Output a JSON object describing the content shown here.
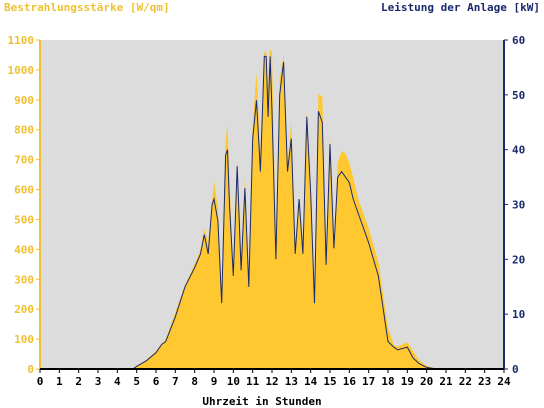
{
  "chart_data": {
    "type": "area",
    "title_left": "Bestrahlungsstärke [W/qm]",
    "title_right": "Leistung der Anlage [kW]",
    "xlabel": "Uhrzeit in Stunden",
    "xlim": [
      0,
      24
    ],
    "x_ticks": [
      "0",
      "1",
      "2",
      "3",
      "4",
      "5",
      "6",
      "7",
      "8",
      "9",
      "10",
      "11",
      "12",
      "13",
      "14",
      "15",
      "16",
      "17",
      "18",
      "19",
      "20",
      "21",
      "22",
      "23",
      "24"
    ],
    "ylim_left": [
      0,
      1100
    ],
    "y_ticks_left": [
      "0",
      "100",
      "200",
      "300",
      "400",
      "500",
      "600",
      "700",
      "800",
      "900",
      "1000",
      "1100"
    ],
    "ylim_right": [
      0,
      60
    ],
    "y_ticks_right": [
      "0",
      "10",
      "20",
      "30",
      "40",
      "50",
      "60"
    ],
    "grid": false,
    "colors": {
      "plot_bg": "#dcdcdc",
      "irradiance_fill": "#ffc830",
      "power_line": "#1a2a6c",
      "left_axis": "#f0c030",
      "right_axis": "#1a2a6c"
    },
    "series": [
      {
        "axis": "left",
        "kind": "area",
        "x": [
          0,
          4.8,
          5.0,
          5.5,
          6.0,
          6.3,
          6.5,
          7.0,
          7.5,
          8.0,
          8.3,
          8.5,
          8.7,
          8.9,
          9.0,
          9.2,
          9.4,
          9.6,
          9.7,
          9.8,
          10.0,
          10.2,
          10.4,
          10.6,
          10.8,
          11.0,
          11.2,
          11.4,
          11.6,
          11.7,
          11.8,
          11.9,
          12.0,
          12.2,
          12.4,
          12.6,
          12.8,
          13.0,
          13.2,
          13.4,
          13.6,
          13.8,
          14.0,
          14.2,
          14.4,
          14.6,
          14.8,
          15.0,
          15.2,
          15.4,
          15.6,
          15.8,
          16.0,
          16.2,
          16.5,
          17.0,
          17.5,
          18.0,
          18.3,
          18.5,
          19.0,
          19.3,
          19.6,
          20.0,
          20.5,
          21.0,
          24.0
        ],
        "y": [
          0,
          0,
          10,
          30,
          60,
          85,
          100,
          190,
          280,
          350,
          400,
          470,
          420,
          560,
          630,
          540,
          250,
          760,
          820,
          620,
          330,
          690,
          370,
          640,
          300,
          820,
          990,
          720,
          1060,
          1060,
          940,
          1070,
          1060,
          400,
          970,
          1050,
          680,
          830,
          420,
          570,
          420,
          860,
          610,
          230,
          920,
          910,
          350,
          780,
          410,
          690,
          730,
          720,
          690,
          640,
          560,
          470,
          360,
          140,
          80,
          75,
          90,
          60,
          30,
          10,
          2,
          0,
          0
        ]
      },
      {
        "axis": "right",
        "kind": "line",
        "x": [
          0,
          4.8,
          5.0,
          5.5,
          6.0,
          6.3,
          6.5,
          7.0,
          7.5,
          8.0,
          8.3,
          8.5,
          8.7,
          8.9,
          9.0,
          9.2,
          9.4,
          9.6,
          9.7,
          9.8,
          10.0,
          10.2,
          10.4,
          10.6,
          10.8,
          11.0,
          11.2,
          11.4,
          11.6,
          11.7,
          11.8,
          11.9,
          12.0,
          12.2,
          12.4,
          12.6,
          12.8,
          13.0,
          13.2,
          13.4,
          13.6,
          13.8,
          14.0,
          14.2,
          14.4,
          14.6,
          14.8,
          15.0,
          15.2,
          15.4,
          15.6,
          15.8,
          16.0,
          16.2,
          16.5,
          17.0,
          17.5,
          18.0,
          18.3,
          18.5,
          19.0,
          19.3,
          19.6,
          20.0,
          20.5,
          21.0,
          24.0
        ],
        "y": [
          0,
          0,
          0.5,
          1.5,
          3,
          4.5,
          5,
          9.5,
          15,
          18.5,
          21,
          24.5,
          21,
          30,
          31,
          27,
          12,
          39,
          40,
          30,
          17,
          37,
          18,
          33,
          15,
          42,
          49,
          36,
          57,
          57,
          46,
          57,
          47,
          20,
          50,
          56,
          36,
          42,
          21,
          31,
          21,
          46,
          32,
          12,
          47,
          45,
          19,
          41,
          22,
          35,
          36,
          35,
          34,
          31,
          28,
          23,
          17,
          5,
          4,
          3.5,
          4,
          2,
          1,
          0.3,
          0,
          0,
          0
        ]
      }
    ]
  }
}
